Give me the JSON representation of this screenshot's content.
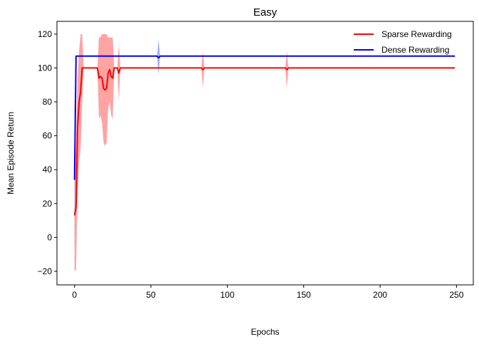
{
  "chart_data": {
    "type": "line",
    "title": "Easy",
    "xlabel": "Epochs",
    "ylabel": "Mean Episode Return",
    "xlim": [
      -11.5,
      261
    ],
    "ylim": [
      -28,
      127.5
    ],
    "xticks": [
      0,
      50,
      100,
      150,
      200,
      250
    ],
    "yticks": [
      -20,
      0,
      20,
      40,
      60,
      80,
      100,
      120
    ],
    "xtick_labels": [
      "0",
      "50",
      "100",
      "150",
      "200",
      "250"
    ],
    "ytick_labels": [
      "−20",
      "0",
      "20",
      "40",
      "60",
      "80",
      "100",
      "120"
    ],
    "grid": false,
    "legend": {
      "position": "top-right"
    },
    "series": [
      {
        "name": "Sparse Rewarding",
        "color": "#ff0000",
        "band_color": "#ff9999",
        "points": [
          {
            "x": 0,
            "y": 13,
            "lo": -20,
            "hi": 40
          },
          {
            "x": 1,
            "y": 18,
            "lo": -19,
            "hi": 55
          },
          {
            "x": 2,
            "y": 65,
            "lo": 25,
            "hi": 95
          },
          {
            "x": 3,
            "y": 80,
            "lo": 45,
            "hi": 110
          },
          {
            "x": 4,
            "y": 86,
            "lo": 52,
            "hi": 120
          },
          {
            "x": 5,
            "y": 100,
            "lo": 80,
            "hi": 120
          },
          {
            "x": 6,
            "y": 100,
            "lo": 100,
            "hi": 100
          },
          {
            "x": 15,
            "y": 100,
            "lo": 100,
            "hi": 100
          },
          {
            "x": 16,
            "y": 94,
            "lo": 70,
            "hi": 118
          },
          {
            "x": 17,
            "y": 95,
            "lo": 72,
            "hi": 118
          },
          {
            "x": 18,
            "y": 94,
            "lo": 68,
            "hi": 120
          },
          {
            "x": 19,
            "y": 88,
            "lo": 56,
            "hi": 120
          },
          {
            "x": 20,
            "y": 87,
            "lo": 54,
            "hi": 120
          },
          {
            "x": 21,
            "y": 88,
            "lo": 56,
            "hi": 120
          },
          {
            "x": 22,
            "y": 97,
            "lo": 76,
            "hi": 118
          },
          {
            "x": 23,
            "y": 99,
            "lo": 80,
            "hi": 118
          },
          {
            "x": 24,
            "y": 95,
            "lo": 72,
            "hi": 118
          },
          {
            "x": 25,
            "y": 94,
            "lo": 70,
            "hi": 118
          },
          {
            "x": 26,
            "y": 100,
            "lo": 100,
            "hi": 100
          },
          {
            "x": 28,
            "y": 100,
            "lo": 100,
            "hi": 100
          },
          {
            "x": 29,
            "y": 97,
            "lo": 80,
            "hi": 114
          },
          {
            "x": 30,
            "y": 100,
            "lo": 100,
            "hi": 100
          },
          {
            "x": 83,
            "y": 100,
            "lo": 100,
            "hi": 100
          },
          {
            "x": 84,
            "y": 99,
            "lo": 88,
            "hi": 110
          },
          {
            "x": 85,
            "y": 100,
            "lo": 100,
            "hi": 100
          },
          {
            "x": 138,
            "y": 100,
            "lo": 100,
            "hi": 100
          },
          {
            "x": 139,
            "y": 99,
            "lo": 88,
            "hi": 110
          },
          {
            "x": 140,
            "y": 100,
            "lo": 100,
            "hi": 100
          },
          {
            "x": 249,
            "y": 100,
            "lo": 100,
            "hi": 100
          }
        ]
      },
      {
        "name": "Dense Rewarding",
        "color": "#0000ff",
        "band_color": "#99aaf0",
        "points": [
          {
            "x": 0,
            "y": 34,
            "lo": -10,
            "hi": 78
          },
          {
            "x": 1,
            "y": 107,
            "lo": 107,
            "hi": 107
          },
          {
            "x": 54,
            "y": 107,
            "lo": 107,
            "hi": 107
          },
          {
            "x": 55,
            "y": 106,
            "lo": 96,
            "hi": 117
          },
          {
            "x": 56,
            "y": 107,
            "lo": 107,
            "hi": 107
          },
          {
            "x": 249,
            "y": 107,
            "lo": 107,
            "hi": 107
          }
        ]
      }
    ]
  }
}
